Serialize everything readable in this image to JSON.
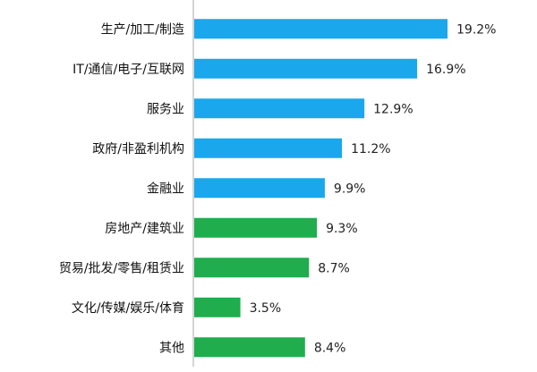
{
  "chart_data": {
    "type": "bar",
    "orientation": "horizontal",
    "categories": [
      "生产/加工/制造",
      "IT/通信/电子/互联网",
      "服务业",
      "政府/非盈利机构",
      "金融业",
      "房地产/建筑业",
      "贸易/批发/零售/租赁业",
      "文化/传媒/娱乐/体育",
      "其他"
    ],
    "values": [
      19.2,
      16.9,
      12.9,
      11.2,
      9.9,
      9.3,
      8.7,
      3.5,
      8.4
    ],
    "value_labels": [
      "19.2%",
      "16.9%",
      "12.9%",
      "11.2%",
      "9.9%",
      "9.3%",
      "8.7%",
      "3.5%",
      "8.4%"
    ],
    "bar_colors": [
      "#1aa7ec",
      "#1aa7ec",
      "#1aa7ec",
      "#1aa7ec",
      "#1aa7ec",
      "#1fad4e",
      "#1fad4e",
      "#1fad4e",
      "#1fad4e"
    ],
    "xlim": [
      0,
      19.2
    ],
    "grid": false,
    "title": "",
    "xlabel": "",
    "ylabel": ""
  },
  "colors": {
    "background": "#ffffff",
    "axis": "#aaaaaa",
    "text": "#111111"
  }
}
